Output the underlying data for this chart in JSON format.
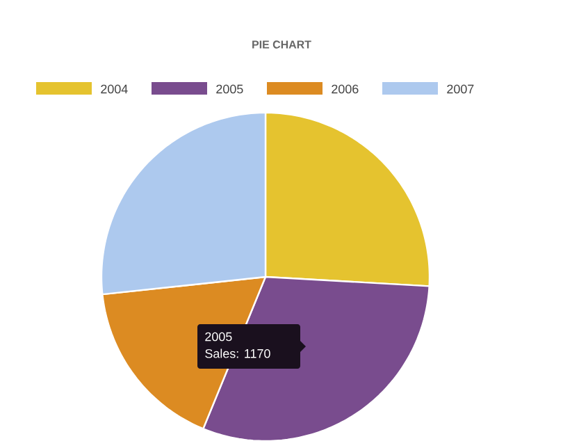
{
  "chart_data": {
    "type": "pie",
    "title": "PIE CHART",
    "categories": [
      "2004",
      "2005",
      "2006",
      "2007"
    ],
    "values": [
      25.9,
      30.3,
      17.1,
      26.7
    ],
    "colors": [
      "#e5c32f",
      "#794c8e",
      "#dc8b22",
      "#adc9ee"
    ],
    "legend": "top",
    "annotations": [
      "2005",
      "Sales: 1170"
    ]
  }
}
